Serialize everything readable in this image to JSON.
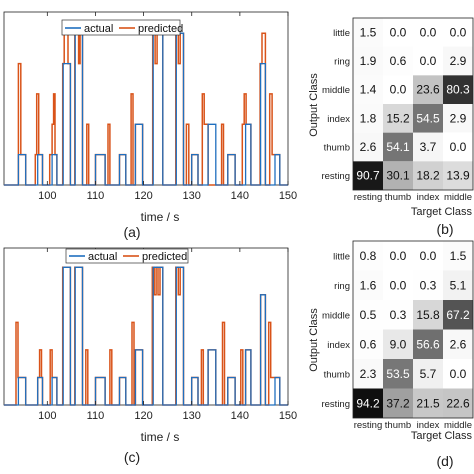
{
  "panels": {
    "a": "(a)",
    "b": "(b)",
    "c": "(c)",
    "d": "(d)"
  },
  "colors": {
    "actual": "#1f6fbf",
    "predicted": "#d95319"
  },
  "chart_data": [
    {
      "type": "line",
      "panel": "(a)",
      "xlabel": "time / s",
      "xlim": [
        91,
        150
      ],
      "xticks": [
        "100",
        "110",
        "120",
        "130",
        "140",
        "150"
      ],
      "xtick_values": [
        100,
        110,
        120,
        130,
        140,
        150
      ],
      "ylim": [
        0,
        5.7
      ],
      "legend": {
        "placement": "top",
        "entries": [
          "actual",
          "predicted"
        ]
      },
      "series": [
        {
          "name": "actual",
          "steps": [
            [
              91,
              0
            ],
            [
              94,
              1
            ],
            [
              95.5,
              0
            ],
            [
              98,
              1
            ],
            [
              99,
              0
            ],
            [
              101,
              1
            ],
            [
              102,
              0
            ],
            [
              103.3,
              4
            ],
            [
              104.8,
              0
            ],
            [
              105.8,
              5
            ],
            [
              107.3,
              0
            ],
            [
              110,
              1
            ],
            [
              112,
              0
            ],
            [
              115,
              1
            ],
            [
              116.3,
              0
            ],
            [
              118.3,
              2
            ],
            [
              119.8,
              0
            ],
            [
              122,
              5
            ],
            [
              124,
              0
            ],
            [
              126.8,
              5
            ],
            [
              128.3,
              0
            ],
            [
              130,
              1
            ],
            [
              131.3,
              0
            ],
            [
              133.4,
              2
            ],
            [
              135,
              0
            ],
            [
              137.5,
              1
            ],
            [
              139,
              0
            ],
            [
              141.2,
              2
            ],
            [
              142.3,
              0
            ],
            [
              144.3,
              4
            ],
            [
              145.3,
              0
            ],
            [
              147.3,
              1
            ],
            [
              148.3,
              0
            ]
          ]
        },
        {
          "name": "predicted",
          "steps": [
            [
              91,
              0
            ],
            [
              94,
              4
            ],
            [
              94.5,
              1
            ],
            [
              95.5,
              0
            ],
            [
              97.5,
              1
            ],
            [
              97.8,
              3
            ],
            [
              98.2,
              1
            ],
            [
              99,
              0
            ],
            [
              100.5,
              1
            ],
            [
              101,
              2
            ],
            [
              101.3,
              3
            ],
            [
              101.6,
              1
            ],
            [
              102,
              0
            ],
            [
              103.2,
              4
            ],
            [
              103.5,
              5
            ],
            [
              104.3,
              4
            ],
            [
              104.8,
              0
            ],
            [
              105.7,
              5
            ],
            [
              106.5,
              4
            ],
            [
              106.8,
              5
            ],
            [
              107.3,
              0
            ],
            [
              108.2,
              2
            ],
            [
              108.6,
              0
            ],
            [
              110,
              1
            ],
            [
              112,
              0
            ],
            [
              112.6,
              2
            ],
            [
              113,
              0
            ],
            [
              115,
              1
            ],
            [
              116.3,
              0
            ],
            [
              117.4,
              3
            ],
            [
              117.8,
              0
            ],
            [
              118.3,
              2
            ],
            [
              119.8,
              0
            ],
            [
              121.9,
              5
            ],
            [
              122.4,
              4
            ],
            [
              122.8,
              5
            ],
            [
              124,
              0
            ],
            [
              126.7,
              5
            ],
            [
              127.2,
              4
            ],
            [
              127.6,
              5
            ],
            [
              128.3,
              0
            ],
            [
              128.9,
              2
            ],
            [
              129.4,
              0
            ],
            [
              130,
              1
            ],
            [
              131.3,
              0
            ],
            [
              132.2,
              3
            ],
            [
              132.6,
              2
            ],
            [
              133.4,
              0
            ],
            [
              135,
              0
            ],
            [
              136.2,
              2
            ],
            [
              136.6,
              0
            ],
            [
              137.5,
              1
            ],
            [
              139,
              0
            ],
            [
              140.5,
              2
            ],
            [
              140.9,
              3
            ],
            [
              141.3,
              2
            ],
            [
              142.3,
              0
            ],
            [
              144.2,
              4
            ],
            [
              144.6,
              5
            ],
            [
              145.3,
              0
            ],
            [
              146.2,
              3
            ],
            [
              146.7,
              1
            ],
            [
              148.3,
              0
            ]
          ]
        }
      ]
    },
    {
      "type": "heatmap",
      "panel": "(b)",
      "ylabel": "Output Class",
      "xlabel": "Target Class",
      "rows": [
        "little",
        "ring",
        "middle",
        "index",
        "thumb",
        "resting"
      ],
      "cols": [
        "resting",
        "thumb",
        "index",
        "middle"
      ],
      "values": [
        [
          1.5,
          0.0,
          0.0,
          0.0
        ],
        [
          1.9,
          0.6,
          0.0,
          2.9
        ],
        [
          1.4,
          0.0,
          23.6,
          80.3
        ],
        [
          1.8,
          15.2,
          54.5,
          2.9
        ],
        [
          2.6,
          54.1,
          3.7,
          0.0
        ],
        [
          90.7,
          30.1,
          18.2,
          13.9
        ]
      ]
    },
    {
      "type": "line",
      "panel": "(c)",
      "xlabel": "time / s",
      "xlim": [
        91,
        150
      ],
      "xticks": [
        "100",
        "110",
        "120",
        "130",
        "140",
        "150"
      ],
      "xtick_values": [
        100,
        110,
        120,
        130,
        140,
        150
      ],
      "ylim": [
        0,
        5.7
      ],
      "legend": {
        "placement": "top",
        "entries": [
          "actual",
          "predicted"
        ]
      },
      "series": [
        {
          "name": "actual",
          "steps": [
            [
              91,
              0
            ],
            [
              94,
              1
            ],
            [
              95.5,
              0
            ],
            [
              98,
              1
            ],
            [
              99,
              0
            ],
            [
              101,
              1
            ],
            [
              102,
              0
            ],
            [
              103.3,
              5
            ],
            [
              104.8,
              0
            ],
            [
              105.8,
              5
            ],
            [
              107.3,
              0
            ],
            [
              110,
              1
            ],
            [
              112,
              0
            ],
            [
              115,
              1
            ],
            [
              116.3,
              0
            ],
            [
              118.3,
              2
            ],
            [
              119.8,
              0
            ],
            [
              122,
              5
            ],
            [
              124,
              0
            ],
            [
              126.8,
              5
            ],
            [
              128.3,
              0
            ],
            [
              130,
              1
            ],
            [
              131.3,
              0
            ],
            [
              133.4,
              2
            ],
            [
              135,
              0
            ],
            [
              137.5,
              1
            ],
            [
              139,
              0
            ],
            [
              141.2,
              2
            ],
            [
              142.3,
              0
            ],
            [
              144.3,
              4
            ],
            [
              145.3,
              0
            ],
            [
              147.3,
              1
            ],
            [
              148.3,
              0
            ]
          ]
        },
        {
          "name": "predicted",
          "steps": [
            [
              91,
              0
            ],
            [
              93.5,
              3
            ],
            [
              93.9,
              1
            ],
            [
              95.5,
              0
            ],
            [
              98,
              1
            ],
            [
              98.4,
              2
            ],
            [
              98.8,
              1
            ],
            [
              99,
              0
            ],
            [
              100.6,
              2
            ],
            [
              101,
              1
            ],
            [
              102,
              0
            ],
            [
              103.2,
              5
            ],
            [
              104.8,
              0
            ],
            [
              105.7,
              5
            ],
            [
              107.3,
              0
            ],
            [
              108,
              2
            ],
            [
              108.4,
              0
            ],
            [
              110,
              1
            ],
            [
              112,
              0
            ],
            [
              113,
              2
            ],
            [
              113.4,
              0
            ],
            [
              115,
              1
            ],
            [
              116.3,
              0
            ],
            [
              117.6,
              3
            ],
            [
              118,
              0
            ],
            [
              118.3,
              2
            ],
            [
              119.8,
              0
            ],
            [
              121.8,
              5
            ],
            [
              122.2,
              4
            ],
            [
              122.6,
              5
            ],
            [
              123,
              4
            ],
            [
              123.4,
              5
            ],
            [
              124,
              0
            ],
            [
              126.7,
              5
            ],
            [
              127.2,
              4
            ],
            [
              127.6,
              5
            ],
            [
              128.3,
              0
            ],
            [
              130,
              1
            ],
            [
              131.3,
              0
            ],
            [
              132,
              2
            ],
            [
              132.4,
              0
            ],
            [
              133.4,
              2
            ],
            [
              135,
              0
            ],
            [
              136.4,
              3
            ],
            [
              136.8,
              0
            ],
            [
              137.5,
              1
            ],
            [
              139,
              0
            ],
            [
              140.2,
              2
            ],
            [
              140.6,
              0
            ],
            [
              141.2,
              2
            ],
            [
              142.3,
              0
            ],
            [
              144.3,
              4
            ],
            [
              145.3,
              0
            ],
            [
              146,
              3
            ],
            [
              146.4,
              1
            ],
            [
              148.3,
              0
            ]
          ]
        }
      ]
    },
    {
      "type": "heatmap",
      "panel": "(d)",
      "ylabel": "Output Class",
      "xlabel": "Target Class",
      "rows": [
        "little",
        "ring",
        "middle",
        "index",
        "thumb",
        "resting"
      ],
      "cols": [
        "resting",
        "thumb",
        "index",
        "middle"
      ],
      "values": [
        [
          0.8,
          0.0,
          0.0,
          1.5
        ],
        [
          1.6,
          0.0,
          0.3,
          5.1
        ],
        [
          0.5,
          0.3,
          15.8,
          67.2
        ],
        [
          0.6,
          9.0,
          56.6,
          2.6
        ],
        [
          2.3,
          53.5,
          5.7,
          0.0
        ],
        [
          94.2,
          37.2,
          21.5,
          22.6
        ]
      ]
    }
  ]
}
